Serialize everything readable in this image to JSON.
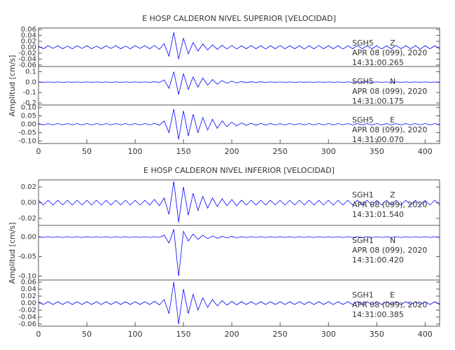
{
  "chart_data": [
    {
      "type": "line",
      "title": "E HOSP CALDERON NIVEL SUPERIOR [VELOCIDAD]",
      "y_label": "Amplitud [cm/s]",
      "color": "#0000ff",
      "xlim": [
        0,
        415
      ],
      "xticks": [
        0,
        50,
        100,
        150,
        200,
        250,
        300,
        350,
        400
      ],
      "x": [
        0,
        5,
        10,
        15,
        20,
        25,
        30,
        35,
        40,
        45,
        50,
        55,
        60,
        65,
        70,
        75,
        80,
        85,
        90,
        95,
        100,
        105,
        110,
        115,
        120,
        125,
        130,
        135,
        140,
        145,
        150,
        155,
        160,
        165,
        170,
        175,
        180,
        185,
        190,
        195,
        200,
        205,
        210,
        215,
        220,
        225,
        230,
        235,
        240,
        245,
        250,
        255,
        260,
        265,
        270,
        275,
        280,
        285,
        290,
        295,
        300,
        305,
        310,
        315,
        320,
        325,
        330,
        335,
        340,
        345,
        350,
        355,
        360,
        365,
        370,
        375,
        380,
        385,
        390,
        395,
        400,
        405,
        410,
        415
      ],
      "panels": [
        {
          "station": "SGH5",
          "component": "Z",
          "date": "APR 08 (099), 2020",
          "time": "14:31:00.265",
          "ylim": [
            -0.065,
            0.065
          ],
          "yticks": [
            {
              "value": 0.06,
              "label": "0.06"
            },
            {
              "value": 0.04,
              "label": "0.04"
            },
            {
              "value": 0.02,
              "label": "0.02"
            },
            {
              "value": 0,
              "label": "0.00"
            },
            {
              "value": -0.02,
              "label": "-0.02"
            },
            {
              "value": -0.04,
              "label": "-0.04"
            },
            {
              "value": -0.06,
              "label": "-0.06"
            }
          ],
          "values": [
            0.004,
            -0.005,
            0.005,
            -0.004,
            0.005,
            -0.005,
            0.004,
            -0.005,
            0.005,
            -0.004,
            0.005,
            -0.005,
            0.004,
            -0.005,
            0.005,
            -0.004,
            0.005,
            -0.005,
            0.004,
            -0.005,
            0.005,
            -0.004,
            0.005,
            -0.005,
            0.006,
            -0.007,
            0.012,
            -0.03,
            0.05,
            -0.04,
            0.03,
            -0.022,
            0.016,
            -0.013,
            0.011,
            -0.009,
            0.008,
            -0.007,
            0.007,
            -0.006,
            0.006,
            -0.006,
            0.005,
            -0.005,
            0.006,
            -0.005,
            0.005,
            -0.006,
            0.005,
            -0.005,
            0.006,
            -0.005,
            0.005,
            -0.005,
            0.005,
            -0.006,
            0.005,
            -0.005,
            0.006,
            -0.005,
            0.005,
            -0.005,
            0.005,
            -0.006,
            0.005,
            -0.005,
            0.006,
            -0.005,
            0.005,
            -0.005,
            0.005,
            -0.006,
            0.005,
            -0.005,
            0.006,
            -0.005,
            0.005,
            -0.005,
            0.005,
            -0.006,
            0.005,
            -0.005,
            0.005,
            -0.005
          ]
        },
        {
          "station": "SGH5",
          "component": "N",
          "date": "APR 08 (099), 2020",
          "time": "14:31:00.175",
          "ylim": [
            -0.22,
            0.15
          ],
          "yticks": [
            0.1,
            {
              "value": 0,
              "label": "0.0"
            },
            -0.1,
            -0.2
          ],
          "values": [
            0.003,
            -0.003,
            0.003,
            -0.003,
            0.003,
            -0.003,
            0.003,
            -0.003,
            0.003,
            -0.003,
            0.003,
            -0.003,
            0.003,
            -0.003,
            0.003,
            -0.003,
            0.003,
            -0.003,
            0.003,
            -0.003,
            0.003,
            -0.003,
            0.003,
            -0.003,
            0.004,
            -0.004,
            0.02,
            -0.06,
            0.1,
            -0.12,
            0.08,
            -0.07,
            0.05,
            -0.05,
            0.04,
            -0.03,
            0.025,
            -0.02,
            0.015,
            -0.012,
            0.01,
            -0.008,
            0.005,
            -0.005,
            0.004,
            -0.004,
            0.004,
            -0.004,
            0.003,
            -0.003,
            0.003,
            -0.003,
            0.003,
            -0.003,
            0.003,
            -0.003,
            0.003,
            -0.003,
            0.003,
            -0.003,
            0.003,
            -0.003,
            0.003,
            -0.003,
            0.003,
            -0.003,
            0.003,
            -0.003,
            0.003,
            -0.003,
            0.003,
            -0.003,
            0.003,
            -0.003,
            0.003,
            -0.003,
            0.003,
            -0.003,
            0.003,
            -0.003,
            0.003,
            -0.003,
            0.003,
            -0.003
          ]
        },
        {
          "station": "SGH5",
          "component": "E",
          "date": "APR 08 (099), 2020",
          "time": "14:31:00.070",
          "ylim": [
            -0.115,
            0.115
          ],
          "yticks": [
            {
              "value": 0.1,
              "label": "0.10"
            },
            0.05,
            {
              "value": 0,
              "label": "0.00"
            },
            -0.05,
            {
              "value": -0.1,
              "label": "-0.10"
            }
          ],
          "values": [
            0.004,
            -0.004,
            0.004,
            -0.004,
            0.004,
            -0.004,
            0.004,
            -0.004,
            0.004,
            -0.004,
            0.004,
            -0.004,
            0.004,
            -0.004,
            0.004,
            -0.004,
            0.004,
            -0.004,
            0.004,
            -0.004,
            0.004,
            -0.004,
            0.004,
            -0.004,
            0.005,
            -0.006,
            0.02,
            -0.05,
            0.09,
            -0.09,
            0.08,
            -0.07,
            0.06,
            -0.05,
            0.04,
            -0.035,
            0.03,
            -0.025,
            0.02,
            -0.015,
            0.012,
            -0.01,
            0.008,
            -0.007,
            0.006,
            -0.006,
            0.005,
            -0.005,
            0.004,
            -0.004,
            0.004,
            -0.004,
            0.004,
            -0.004,
            0.004,
            -0.004,
            0.004,
            -0.004,
            0.004,
            -0.004,
            0.004,
            -0.004,
            0.004,
            -0.004,
            0.004,
            -0.004,
            0.004,
            -0.004,
            0.004,
            -0.004,
            0.004,
            -0.004,
            0.004,
            -0.004,
            0.004,
            -0.004,
            0.004,
            -0.004,
            0.004,
            -0.004,
            0.004,
            -0.004,
            0.004,
            -0.004
          ]
        }
      ]
    },
    {
      "type": "line",
      "title": "E HOSP CALDERON NIVEL INFERIOR [VELOCIDAD]",
      "y_label": "Amplitud [cm/s]",
      "color": "#0000ff",
      "xlim": [
        0,
        415
      ],
      "xticks": [
        0,
        50,
        100,
        150,
        200,
        250,
        300,
        350,
        400
      ],
      "x": [
        0,
        5,
        10,
        15,
        20,
        25,
        30,
        35,
        40,
        45,
        50,
        55,
        60,
        65,
        70,
        75,
        80,
        85,
        90,
        95,
        100,
        105,
        110,
        115,
        120,
        125,
        130,
        135,
        140,
        145,
        150,
        155,
        160,
        165,
        170,
        175,
        180,
        185,
        190,
        195,
        200,
        205,
        210,
        215,
        220,
        225,
        230,
        235,
        240,
        245,
        250,
        255,
        260,
        265,
        270,
        275,
        280,
        285,
        290,
        295,
        300,
        305,
        310,
        315,
        320,
        325,
        330,
        335,
        340,
        345,
        350,
        355,
        360,
        365,
        370,
        375,
        380,
        385,
        390,
        395,
        400,
        405,
        410,
        415
      ],
      "panels": [
        {
          "station": "SGH1",
          "component": "Z",
          "date": "APR 08 (099), 2020",
          "time": "14:31:01.540",
          "ylim": [
            -0.029,
            0.029
          ],
          "yticks": [
            0.02,
            {
              "value": 0,
              "label": "0.00"
            },
            -0.02
          ],
          "values": [
            0.003,
            -0.003,
            0.003,
            -0.003,
            0.003,
            -0.003,
            0.003,
            -0.003,
            0.003,
            -0.003,
            0.003,
            -0.003,
            0.003,
            -0.003,
            0.003,
            -0.003,
            0.003,
            -0.003,
            0.003,
            -0.003,
            0.003,
            -0.003,
            0.003,
            -0.003,
            0.004,
            -0.004,
            0.006,
            -0.015,
            0.027,
            -0.025,
            0.02,
            -0.016,
            0.012,
            -0.01,
            0.008,
            -0.007,
            0.006,
            -0.005,
            0.005,
            -0.004,
            0.004,
            -0.004,
            0.003,
            -0.003,
            0.003,
            -0.003,
            0.003,
            -0.003,
            0.003,
            -0.003,
            0.003,
            -0.003,
            0.003,
            -0.003,
            0.003,
            -0.003,
            0.003,
            -0.003,
            0.003,
            -0.003,
            0.003,
            -0.003,
            0.003,
            -0.003,
            0.003,
            -0.003,
            0.003,
            -0.003,
            0.003,
            -0.003,
            0.003,
            -0.003,
            0.003,
            -0.003,
            0.003,
            -0.003,
            0.003,
            -0.003,
            0.003,
            -0.003,
            0.003,
            -0.003,
            0.003,
            -0.003
          ]
        },
        {
          "station": "SGH1",
          "component": "N",
          "date": "APR 08 (099), 2020",
          "time": "14:31:00.420",
          "ylim": [
            -0.11,
            0.03
          ],
          "yticks": [
            {
              "value": 0,
              "label": "0.00"
            },
            -0.05,
            {
              "value": -0.1,
              "label": "-0.10"
            }
          ],
          "values": [
            0.001,
            -0.001,
            0.001,
            -0.001,
            0.001,
            -0.001,
            0.001,
            -0.001,
            0.001,
            -0.001,
            0.001,
            -0.001,
            0.001,
            -0.001,
            0.001,
            -0.001,
            0.001,
            -0.001,
            0.001,
            -0.001,
            0.001,
            -0.001,
            0.001,
            -0.001,
            0.001,
            -0.001,
            0.005,
            -0.015,
            0.02,
            -0.1,
            0.015,
            -0.01,
            0.008,
            -0.006,
            0.005,
            -0.004,
            0.003,
            -0.003,
            0.002,
            -0.002,
            0.002,
            -0.002,
            0.001,
            -0.001,
            0.001,
            -0.001,
            0.001,
            -0.001,
            0.001,
            -0.001,
            0.001,
            -0.001,
            0.001,
            -0.001,
            0.001,
            -0.001,
            0.001,
            -0.001,
            0.001,
            -0.001,
            0.001,
            -0.001,
            0.001,
            -0.001,
            0.001,
            -0.001,
            0.001,
            -0.001,
            0.001,
            -0.001,
            0.001,
            -0.001,
            0.001,
            -0.001,
            0.001,
            -0.001,
            0.001,
            -0.001,
            0.001,
            -0.001,
            0.001,
            -0.001,
            0.001,
            -0.001
          ]
        },
        {
          "station": "SGH1",
          "component": "E",
          "date": "APR 08 (099), 2020",
          "time": "14:31:00.385",
          "ylim": [
            -0.066,
            0.066
          ],
          "yticks": [
            {
              "value": 0.06,
              "label": "0.06"
            },
            {
              "value": 0.04,
              "label": "0.04"
            },
            {
              "value": 0.02,
              "label": "0.02"
            },
            {
              "value": 0,
              "label": "0.00"
            },
            {
              "value": -0.02,
              "label": "-0.02"
            },
            {
              "value": -0.04,
              "label": "-0.04"
            },
            {
              "value": -0.06,
              "label": "-0.06"
            }
          ],
          "values": [
            0.004,
            -0.004,
            0.004,
            -0.004,
            0.004,
            -0.004,
            0.004,
            -0.004,
            0.004,
            -0.004,
            0.004,
            -0.004,
            0.004,
            -0.004,
            0.004,
            -0.004,
            0.004,
            -0.004,
            0.004,
            -0.004,
            0.004,
            -0.004,
            0.004,
            -0.004,
            0.005,
            -0.005,
            0.01,
            -0.03,
            0.06,
            -0.06,
            0.04,
            -0.03,
            0.025,
            -0.02,
            0.015,
            -0.012,
            0.01,
            -0.008,
            0.007,
            -0.006,
            0.005,
            -0.005,
            0.004,
            -0.004,
            0.004,
            -0.004,
            0.004,
            -0.004,
            0.004,
            -0.004,
            0.004,
            -0.004,
            0.004,
            -0.004,
            0.004,
            -0.004,
            0.004,
            -0.004,
            0.004,
            -0.004,
            0.004,
            -0.004,
            0.004,
            -0.004,
            0.004,
            -0.004,
            0.004,
            -0.004,
            0.004,
            -0.004,
            0.004,
            -0.004,
            0.004,
            -0.004,
            0.004,
            -0.004,
            0.004,
            -0.004,
            0.004,
            -0.004,
            0.004,
            -0.004,
            0.004,
            -0.004
          ]
        }
      ]
    }
  ]
}
